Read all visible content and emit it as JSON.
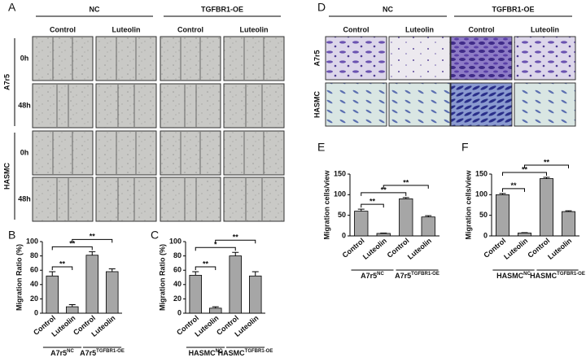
{
  "panel_labels": [
    "A",
    "B",
    "C",
    "D",
    "E",
    "F"
  ],
  "scratch": {
    "groups": [
      "NC",
      "TGFBR1-OE"
    ],
    "columns": [
      "Control",
      "Luteolin",
      "Control",
      "Luteolin"
    ],
    "rows": [
      {
        "cell_line": "A7r5",
        "times": [
          "0h",
          "48h"
        ]
      },
      {
        "cell_line": "HASMC",
        "times": [
          "0h",
          "48h"
        ]
      }
    ]
  },
  "transwell": {
    "groups": [
      "NC",
      "TGFBR1-OE"
    ],
    "columns": [
      "Control",
      "Luteolin",
      "Control",
      "Luteolin"
    ],
    "rows": [
      "A7r5",
      "HASMC"
    ]
  },
  "chart_data": [
    {
      "type": "bar",
      "y_label": "Migration Ratio (%)",
      "categories": [
        "Control",
        "Luteolin",
        "Control",
        "Luteolin"
      ],
      "values": [
        52,
        9,
        81,
        58
      ],
      "errors": [
        6,
        3,
        5,
        4
      ],
      "color": "#a6a6a6",
      "ylim": [
        0,
        100
      ],
      "yticks": [
        0,
        20,
        40,
        60,
        80,
        100
      ],
      "groups": [
        {
          "label": "A7r5",
          "sup": "NC"
        },
        {
          "label": "A7r5",
          "sup": "TGFBR1-OE"
        }
      ],
      "annotations": [
        {
          "text": "**",
          "from": 0,
          "to": 1
        },
        {
          "text": "**",
          "from": 0,
          "to": 2
        },
        {
          "text": "**",
          "from": 1,
          "to": 3
        }
      ]
    },
    {
      "type": "bar",
      "y_label": "Migration Ratio (%)",
      "categories": [
        "Control",
        "Luteolin",
        "Control",
        "Luteolin"
      ],
      "values": [
        53,
        7,
        80,
        52
      ],
      "errors": [
        5,
        2,
        5,
        6
      ],
      "color": "#a6a6a6",
      "ylim": [
        0,
        100
      ],
      "yticks": [
        0,
        20,
        40,
        60,
        80,
        100
      ],
      "groups": [
        {
          "label": "HASMC",
          "sup": "NC"
        },
        {
          "label": "HASMC",
          "sup": "TGFBR1-OE"
        }
      ],
      "annotations": [
        {
          "text": "**",
          "from": 0,
          "to": 1
        },
        {
          "text": "*",
          "from": 0,
          "to": 2
        },
        {
          "text": "**",
          "from": 1,
          "to": 3
        }
      ]
    },
    {
      "type": "bar",
      "y_label": "Migration cells/view",
      "categories": [
        "Control",
        "Luteolin",
        "Control",
        "Luteolin"
      ],
      "values": [
        60,
        6,
        90,
        46
      ],
      "errors": [
        5,
        1,
        3,
        3
      ],
      "color": "#a6a6a6",
      "ylim": [
        0,
        150
      ],
      "yticks": [
        0,
        50,
        100,
        150
      ],
      "groups": [
        {
          "label": "A7r5",
          "sup": "NC"
        },
        {
          "label": "A7r5",
          "sup": "TGFBR1-OE"
        }
      ],
      "annotations": [
        {
          "text": "**",
          "from": 0,
          "to": 1
        },
        {
          "text": "**",
          "from": 0,
          "to": 2
        },
        {
          "text": "**",
          "from": 1,
          "to": 3
        }
      ]
    },
    {
      "type": "bar",
      "y_label": "Migration cells/view",
      "categories": [
        "Control",
        "Luteolin",
        "Control",
        "Luteolin"
      ],
      "values": [
        100,
        7,
        139,
        59
      ],
      "errors": [
        3,
        1,
        3,
        2
      ],
      "color": "#a6a6a6",
      "ylim": [
        0,
        150
      ],
      "yticks": [
        0,
        50,
        100,
        150
      ],
      "groups": [
        {
          "label": "HASMC",
          "sup": "NC"
        },
        {
          "label": "HASMC",
          "sup": "TGFBR1-OE"
        }
      ],
      "annotations": [
        {
          "text": "**",
          "from": 0,
          "to": 1
        },
        {
          "text": "**",
          "from": 0,
          "to": 2
        },
        {
          "text": "**",
          "from": 1,
          "to": 3
        }
      ]
    }
  ]
}
